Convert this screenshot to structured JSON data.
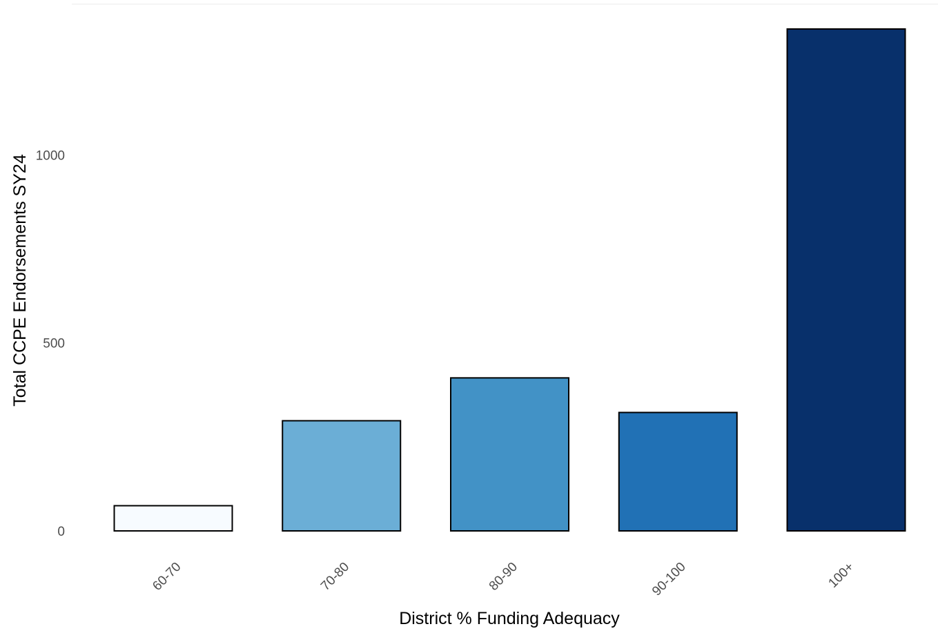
{
  "chart_data": {
    "type": "bar",
    "title": "",
    "xlabel": "District % Funding Adequacy",
    "ylabel": "Total CCPE Endorsements SY24",
    "categories": [
      "60-70",
      "70-80",
      "80-90",
      "90-100",
      "100+"
    ],
    "values": [
      67,
      293,
      407,
      315,
      1335
    ],
    "colors": [
      "#f7fbff",
      "#6baed6",
      "#4292c6",
      "#2171b5",
      "#08306b"
    ],
    "ylim": [
      0,
      1335
    ],
    "yticks": [
      0,
      500,
      1000
    ],
    "grid": false,
    "legend": "none"
  }
}
